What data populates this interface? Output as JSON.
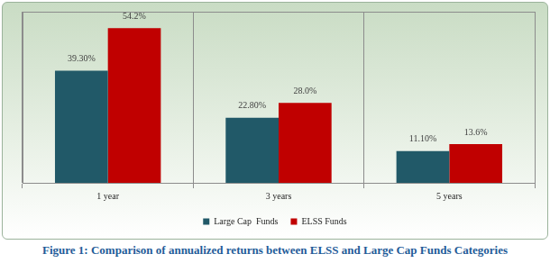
{
  "chart_data": {
    "type": "bar",
    "title": "Figure 1: Comparison of annualized returns between ELSS and Large Cap Funds Categories",
    "categories": [
      "1 year",
      "3 years",
      "5 years"
    ],
    "series": [
      {
        "name": "Large Cap  Funds",
        "color": "#215968",
        "values": [
          39.3,
          22.8,
          11.1
        ],
        "value_labels": [
          "39.30%",
          "22.80%",
          "11.10%"
        ]
      },
      {
        "name": "ELSS Funds",
        "color": "#c00000",
        "values": [
          54.2,
          28.0,
          13.6
        ],
        "value_labels": [
          "54.2%",
          "28.0%",
          "13.6%"
        ]
      }
    ],
    "ylim": [
      0,
      60
    ],
    "grid": true,
    "legend": "bottom",
    "data_labels": true,
    "tick_labels": "x"
  }
}
